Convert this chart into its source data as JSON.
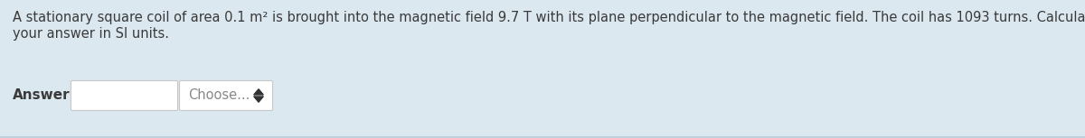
{
  "background_color": "#dce8f0",
  "line1": "A stationary square coil of area 0.1 m² is brought into the magnetic field 9.7 T with its plane perpendicular to the magnetic field. The coil has 1093 turns. Calculate the magnetic flux linkage through the coil. Give",
  "line2": "your answer in SI units.",
  "answer_label": "Answer:",
  "choose_label": "Choose...",
  "text_color": "#3a3a3a",
  "answer_bold": true,
  "box_fill": "#ffffff",
  "box_edge": "#c8c8c8",
  "choose_text_color": "#888888",
  "font_size": 10.5,
  "answer_font_size": 11,
  "fig_width": 12.0,
  "fig_height": 1.53,
  "dpi": 100
}
